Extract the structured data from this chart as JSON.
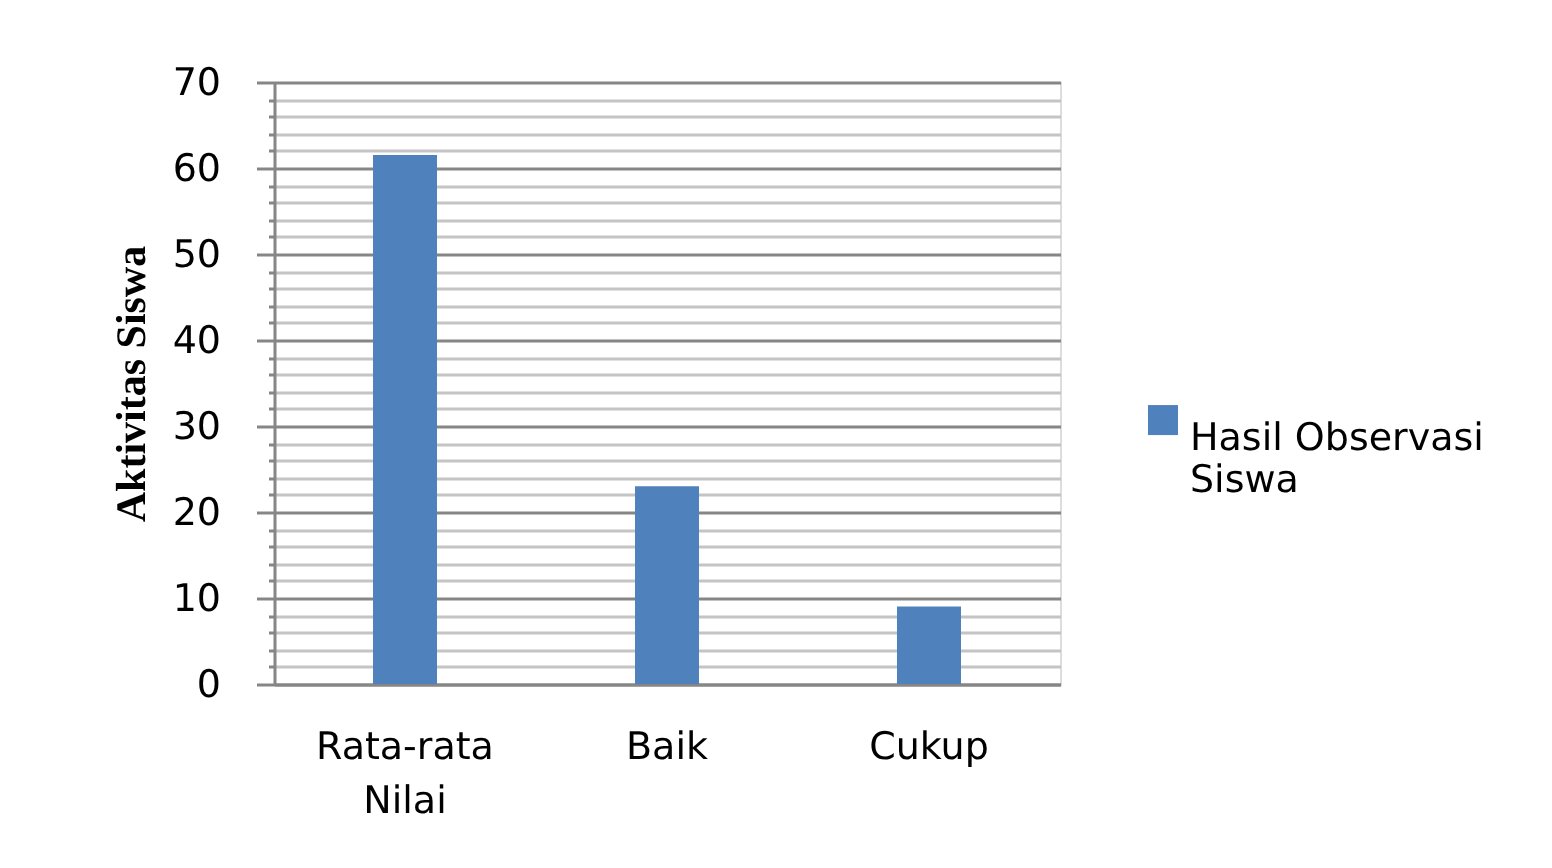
{
  "chart_data": {
    "type": "bar",
    "ylabel": "Aktivitas Siswa",
    "categories": [
      "Rata-rata Nilai",
      "Baik",
      "Cukup"
    ],
    "series": [
      {
        "name": "Hasil Observasi Siswa",
        "color": "#4f81bd",
        "values": [
          61.5,
          23,
          9
        ]
      }
    ],
    "ylim": [
      0,
      70
    ],
    "yticks": [
      0,
      {
        "value": 2,
        "label": null
      },
      {
        "value": 4,
        "label": null
      },
      {
        "value": 6,
        "label": null
      },
      {
        "value": 8,
        "label": null
      },
      10,
      {
        "value": 12,
        "label": null
      },
      {
        "value": 14,
        "label": null
      },
      {
        "value": 16,
        "label": null
      },
      {
        "value": 18,
        "label": null
      },
      20,
      {
        "value": 22,
        "label": null
      },
      {
        "value": 24,
        "label": null
      },
      {
        "value": 26,
        "label": null
      },
      {
        "value": 28,
        "label": null
      },
      30,
      {
        "value": 32,
        "label": null
      },
      {
        "value": 34,
        "label": null
      },
      {
        "value": 36,
        "label": null
      },
      {
        "value": 38,
        "label": null
      },
      40,
      {
        "value": 42,
        "label": null
      },
      {
        "value": 44,
        "label": null
      },
      {
        "value": 46,
        "label": null
      },
      {
        "value": 48,
        "label": null
      },
      50,
      {
        "value": 52,
        "label": null
      },
      {
        "value": 54,
        "label": null
      },
      {
        "value": 56,
        "label": null
      },
      {
        "value": 58,
        "label": null
      },
      60,
      {
        "value": 62,
        "label": null
      },
      {
        "value": 64,
        "label": null
      },
      {
        "value": 66,
        "label": null
      },
      {
        "value": 68,
        "label": null
      },
      70
    ],
    "grid": true,
    "legend": "right"
  }
}
